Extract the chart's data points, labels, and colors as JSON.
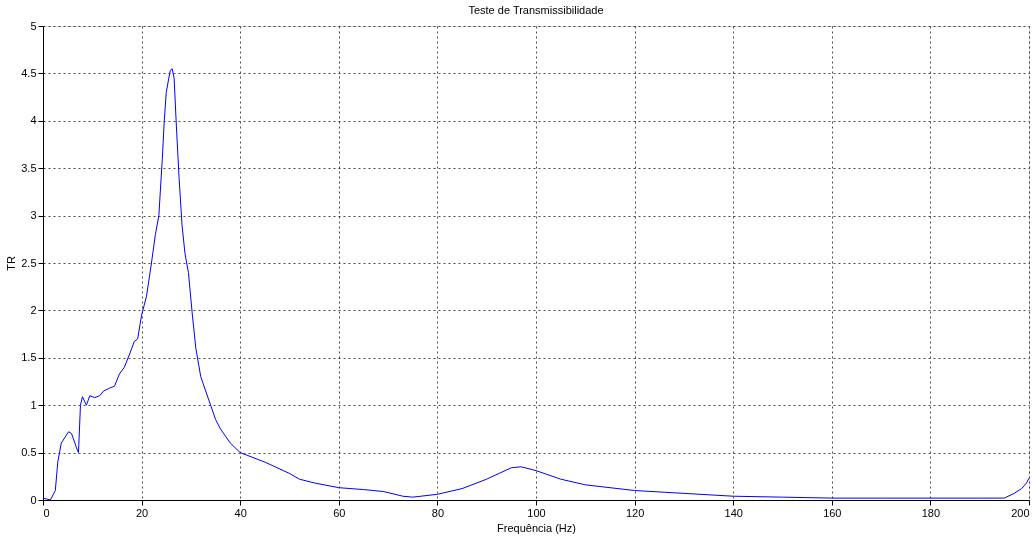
{
  "chart_data": {
    "type": "line",
    "title": "Teste de Transmissibilidade",
    "xlabel": "Frequência (Hz)",
    "ylabel": "TR",
    "xlim": [
      0,
      200
    ],
    "xticks": [
      0,
      20,
      40,
      60,
      80,
      100,
      120,
      140,
      160,
      180,
      200
    ],
    "ylim": [
      0,
      5
    ],
    "yticks": [
      0,
      0.5,
      1,
      1.5,
      2,
      2.5,
      3,
      3.5,
      4,
      4.5,
      5
    ],
    "grid": true,
    "marker": "none",
    "line_style": "solid",
    "series": [
      {
        "color": "#0000ff",
        "x": [
          0,
          1.5,
          2.5,
          3,
          3.7,
          5.2,
          5.8,
          6.8,
          7.2,
          7.6,
          8,
          8.8,
          9.5,
          10.5,
          11.5,
          12.3,
          13.5,
          14.5,
          15.5,
          16.5,
          17.5,
          18.5,
          19.2,
          20,
          21,
          22,
          22.8,
          23.5,
          24.2,
          24.6,
          25,
          25.8,
          26.2,
          26.6,
          27,
          27.6,
          28.2,
          28.8,
          29.5,
          30.3,
          31,
          32,
          33,
          34,
          35,
          36,
          38,
          40,
          45,
          50,
          52,
          55,
          60,
          65,
          69,
          73,
          75,
          80,
          85,
          90,
          95,
          97,
          100,
          105,
          110,
          115,
          120,
          130,
          140,
          150,
          160,
          170,
          180,
          190,
          195,
          197,
          198.5,
          199.5,
          200
        ],
        "values": [
          0.02,
          0.0,
          0.1,
          0.4,
          0.6,
          0.72,
          0.7,
          0.55,
          0.5,
          1.0,
          1.09,
          1.0,
          1.1,
          1.08,
          1.1,
          1.15,
          1.18,
          1.2,
          1.33,
          1.4,
          1.53,
          1.67,
          1.7,
          1.95,
          2.15,
          2.5,
          2.8,
          3.0,
          3.6,
          4.0,
          4.3,
          4.53,
          4.55,
          4.45,
          4.0,
          3.4,
          2.9,
          2.6,
          2.4,
          1.95,
          1.6,
          1.3,
          1.15,
          1.0,
          0.85,
          0.75,
          0.6,
          0.5,
          0.4,
          0.28,
          0.22,
          0.18,
          0.13,
          0.11,
          0.09,
          0.04,
          0.03,
          0.06,
          0.12,
          0.22,
          0.34,
          0.35,
          0.31,
          0.22,
          0.16,
          0.13,
          0.1,
          0.07,
          0.04,
          0.03,
          0.02,
          0.02,
          0.02,
          0.02,
          0.02,
          0.07,
          0.12,
          0.18,
          0.23
        ]
      }
    ]
  }
}
